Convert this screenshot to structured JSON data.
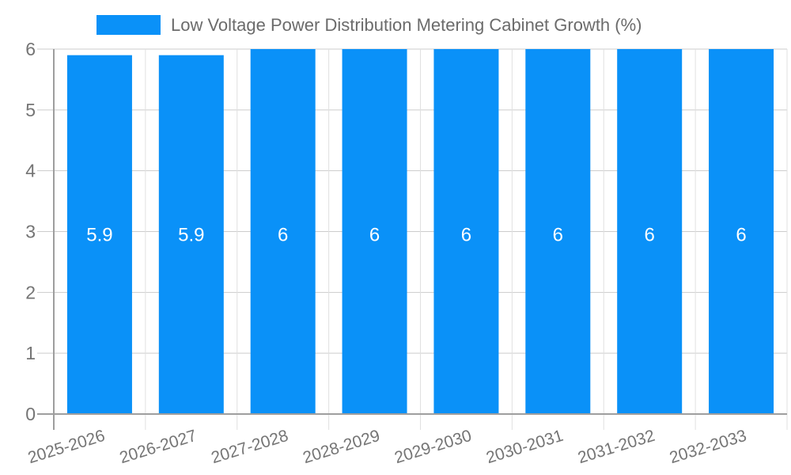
{
  "chart_data": {
    "type": "bar",
    "title": "Low Voltage Power Distribution Metering Cabinet Growth (%)",
    "categories": [
      "2025-2026",
      "2026-2027",
      "2027-2028",
      "2028-2029",
      "2029-2030",
      "2030-2031",
      "2031-2032",
      "2032-2033"
    ],
    "values": [
      5.9,
      5.9,
      6,
      6,
      6,
      6,
      6,
      6
    ],
    "bar_labels": [
      "5.9",
      "5.9",
      "6",
      "6",
      "6",
      "6",
      "6",
      "6"
    ],
    "xlabel": "",
    "ylabel": "",
    "ylim": [
      0,
      6
    ],
    "yticks": [
      0,
      1,
      2,
      3,
      4,
      5,
      6
    ],
    "grid": true,
    "legend_position": "top",
    "colors": {
      "bar": "#0A91F8",
      "grid_horizontal": "#cccccc",
      "grid_vertical": "#e0e0e0",
      "axis": "#9e9e9e",
      "tick_text": "#757575",
      "legend_text": "#6b6b6b",
      "value_text": "#ffffff",
      "background": "#ffffff"
    }
  }
}
